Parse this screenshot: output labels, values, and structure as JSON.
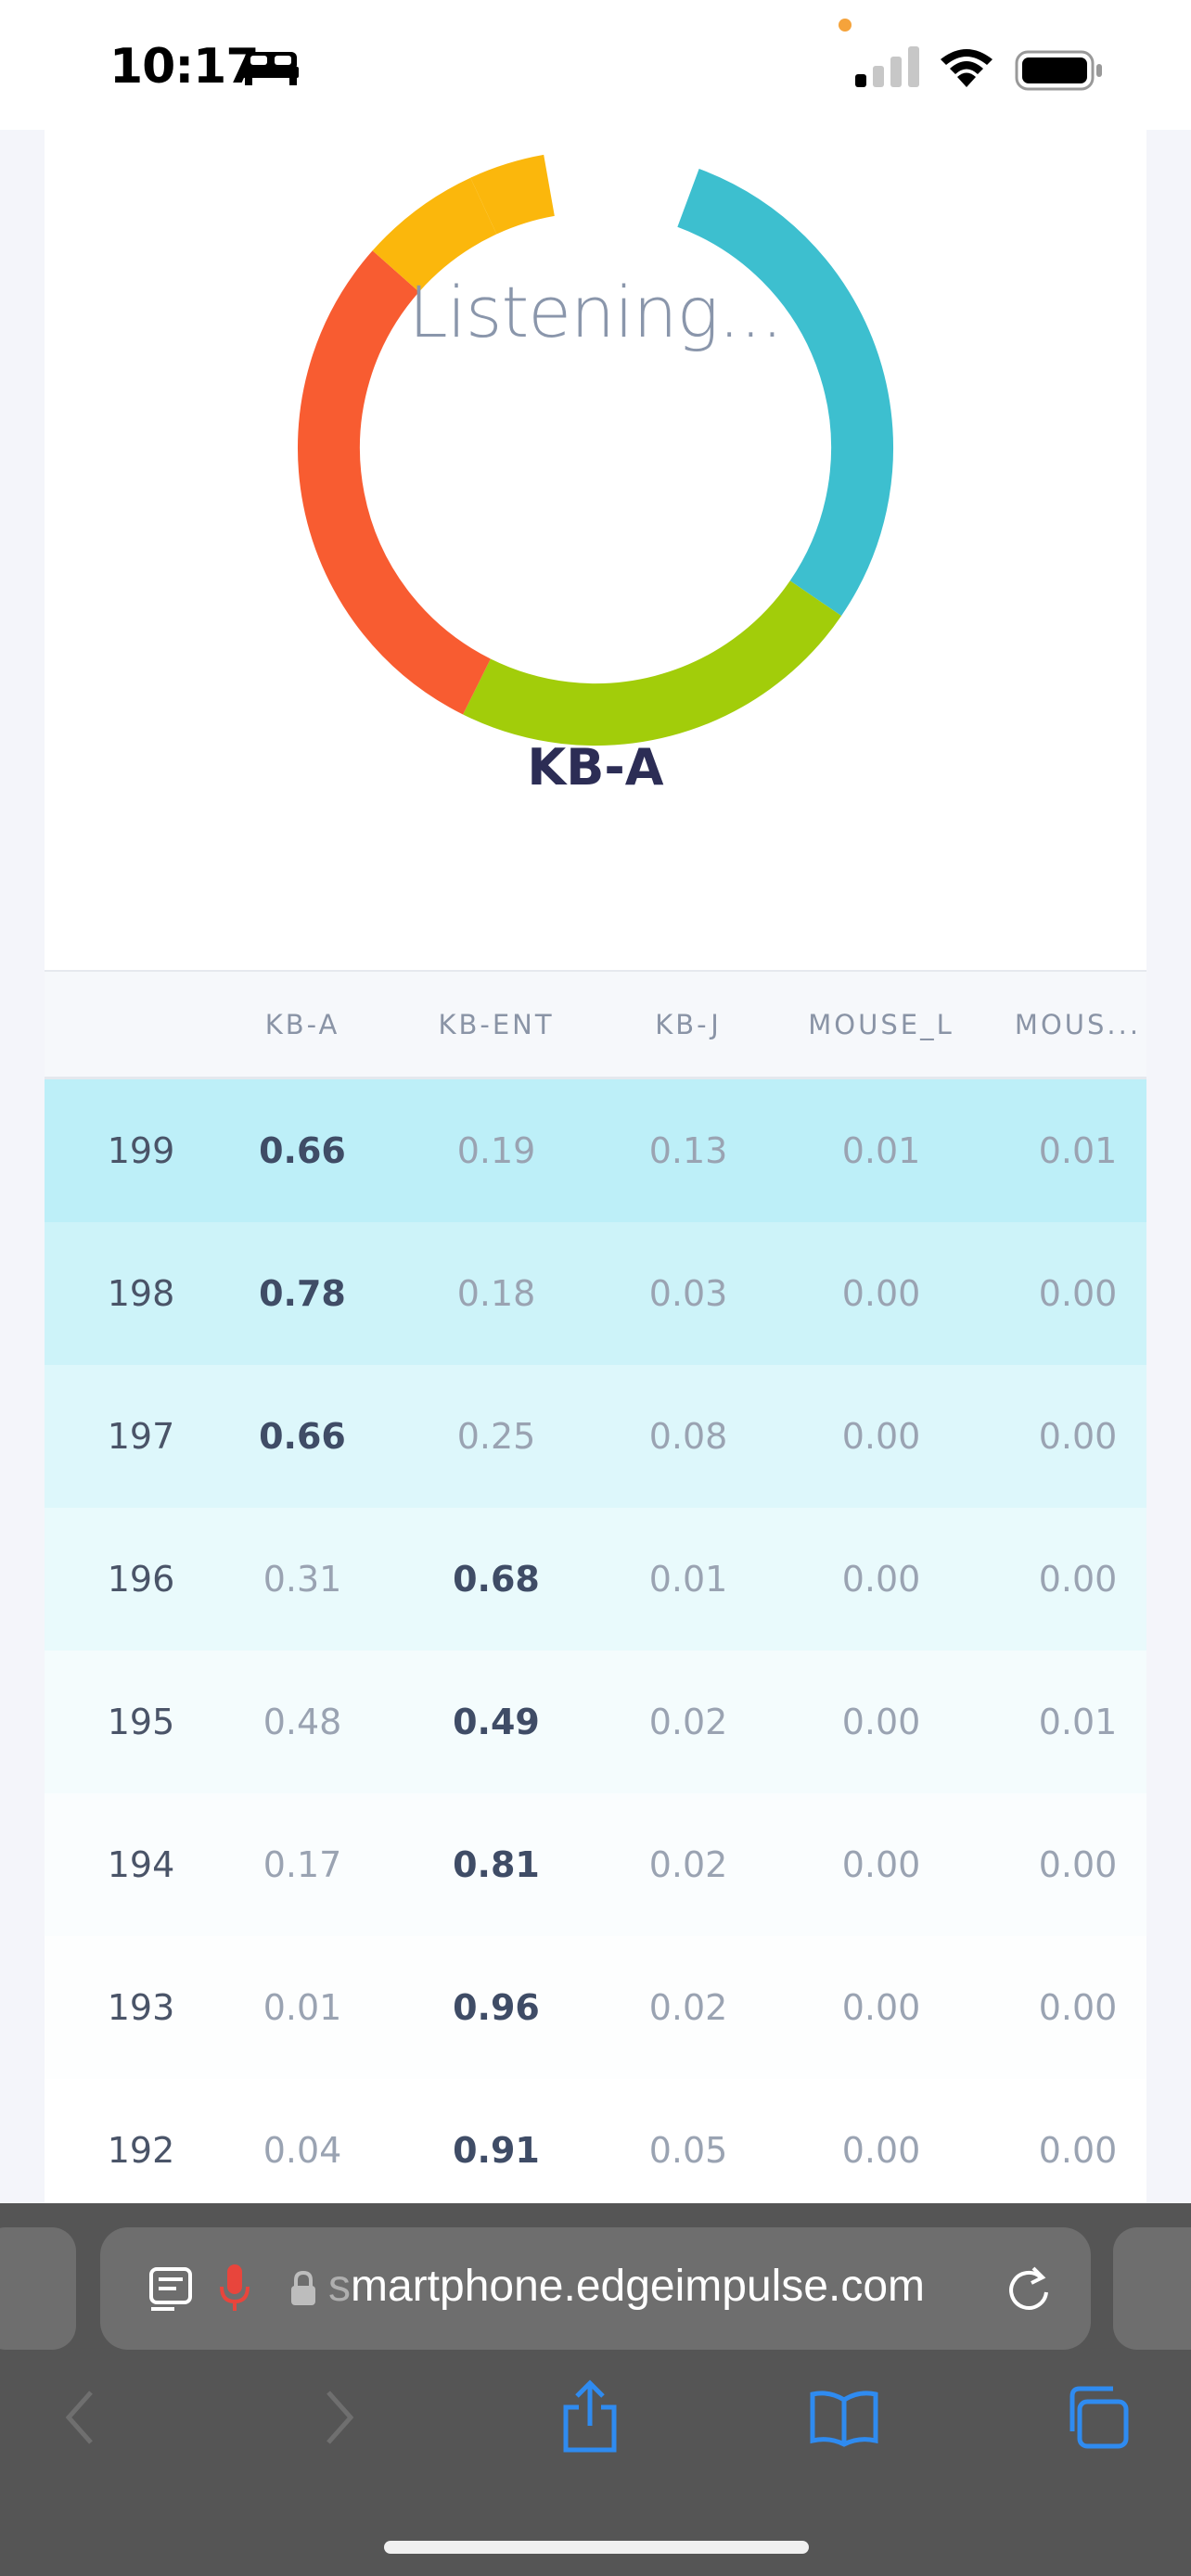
{
  "status_bar": {
    "time": "10:17"
  },
  "classifier": {
    "status_text": "Listening...",
    "prediction": "KB-A",
    "ring_colors": {
      "cyan": "#3dbfcf",
      "green": "#a2cd0a",
      "orange": "#f85c31",
      "yellow": "#fbb70c"
    }
  },
  "table": {
    "headers": [
      "",
      "KB-A",
      "KB-ENT",
      "KB-J",
      "MOUSE_L",
      "MOUS..."
    ],
    "rows": [
      {
        "id": "199",
        "values": [
          "0.66",
          "0.19",
          "0.13",
          "0.01",
          "0.01"
        ],
        "top": 0,
        "bg": "#bdeff8"
      },
      {
        "id": "198",
        "values": [
          "0.78",
          "0.18",
          "0.03",
          "0.00",
          "0.00"
        ],
        "top": 0,
        "bg": "#cdf3f9"
      },
      {
        "id": "197",
        "values": [
          "0.66",
          "0.25",
          "0.08",
          "0.00",
          "0.00"
        ],
        "top": 0,
        "bg": "#ddf7fb"
      },
      {
        "id": "196",
        "values": [
          "0.31",
          "0.68",
          "0.01",
          "0.00",
          "0.00"
        ],
        "top": 1,
        "bg": "#e9fafc"
      },
      {
        "id": "195",
        "values": [
          "0.48",
          "0.49",
          "0.02",
          "0.00",
          "0.01"
        ],
        "top": 1,
        "bg": "#f4fcfd"
      },
      {
        "id": "194",
        "values": [
          "0.17",
          "0.81",
          "0.02",
          "0.00",
          "0.00"
        ],
        "top": 1,
        "bg": "#fafdfe"
      },
      {
        "id": "193",
        "values": [
          "0.01",
          "0.96",
          "0.02",
          "0.00",
          "0.00"
        ],
        "top": 1,
        "bg": "#fdfefe"
      },
      {
        "id": "192",
        "values": [
          "0.04",
          "0.91",
          "0.05",
          "0.00",
          "0.00"
        ],
        "top": 1,
        "bg": "#ffffff"
      }
    ]
  },
  "browser": {
    "url_faded": "s",
    "url": "martphone.edgeimpulse.com"
  }
}
